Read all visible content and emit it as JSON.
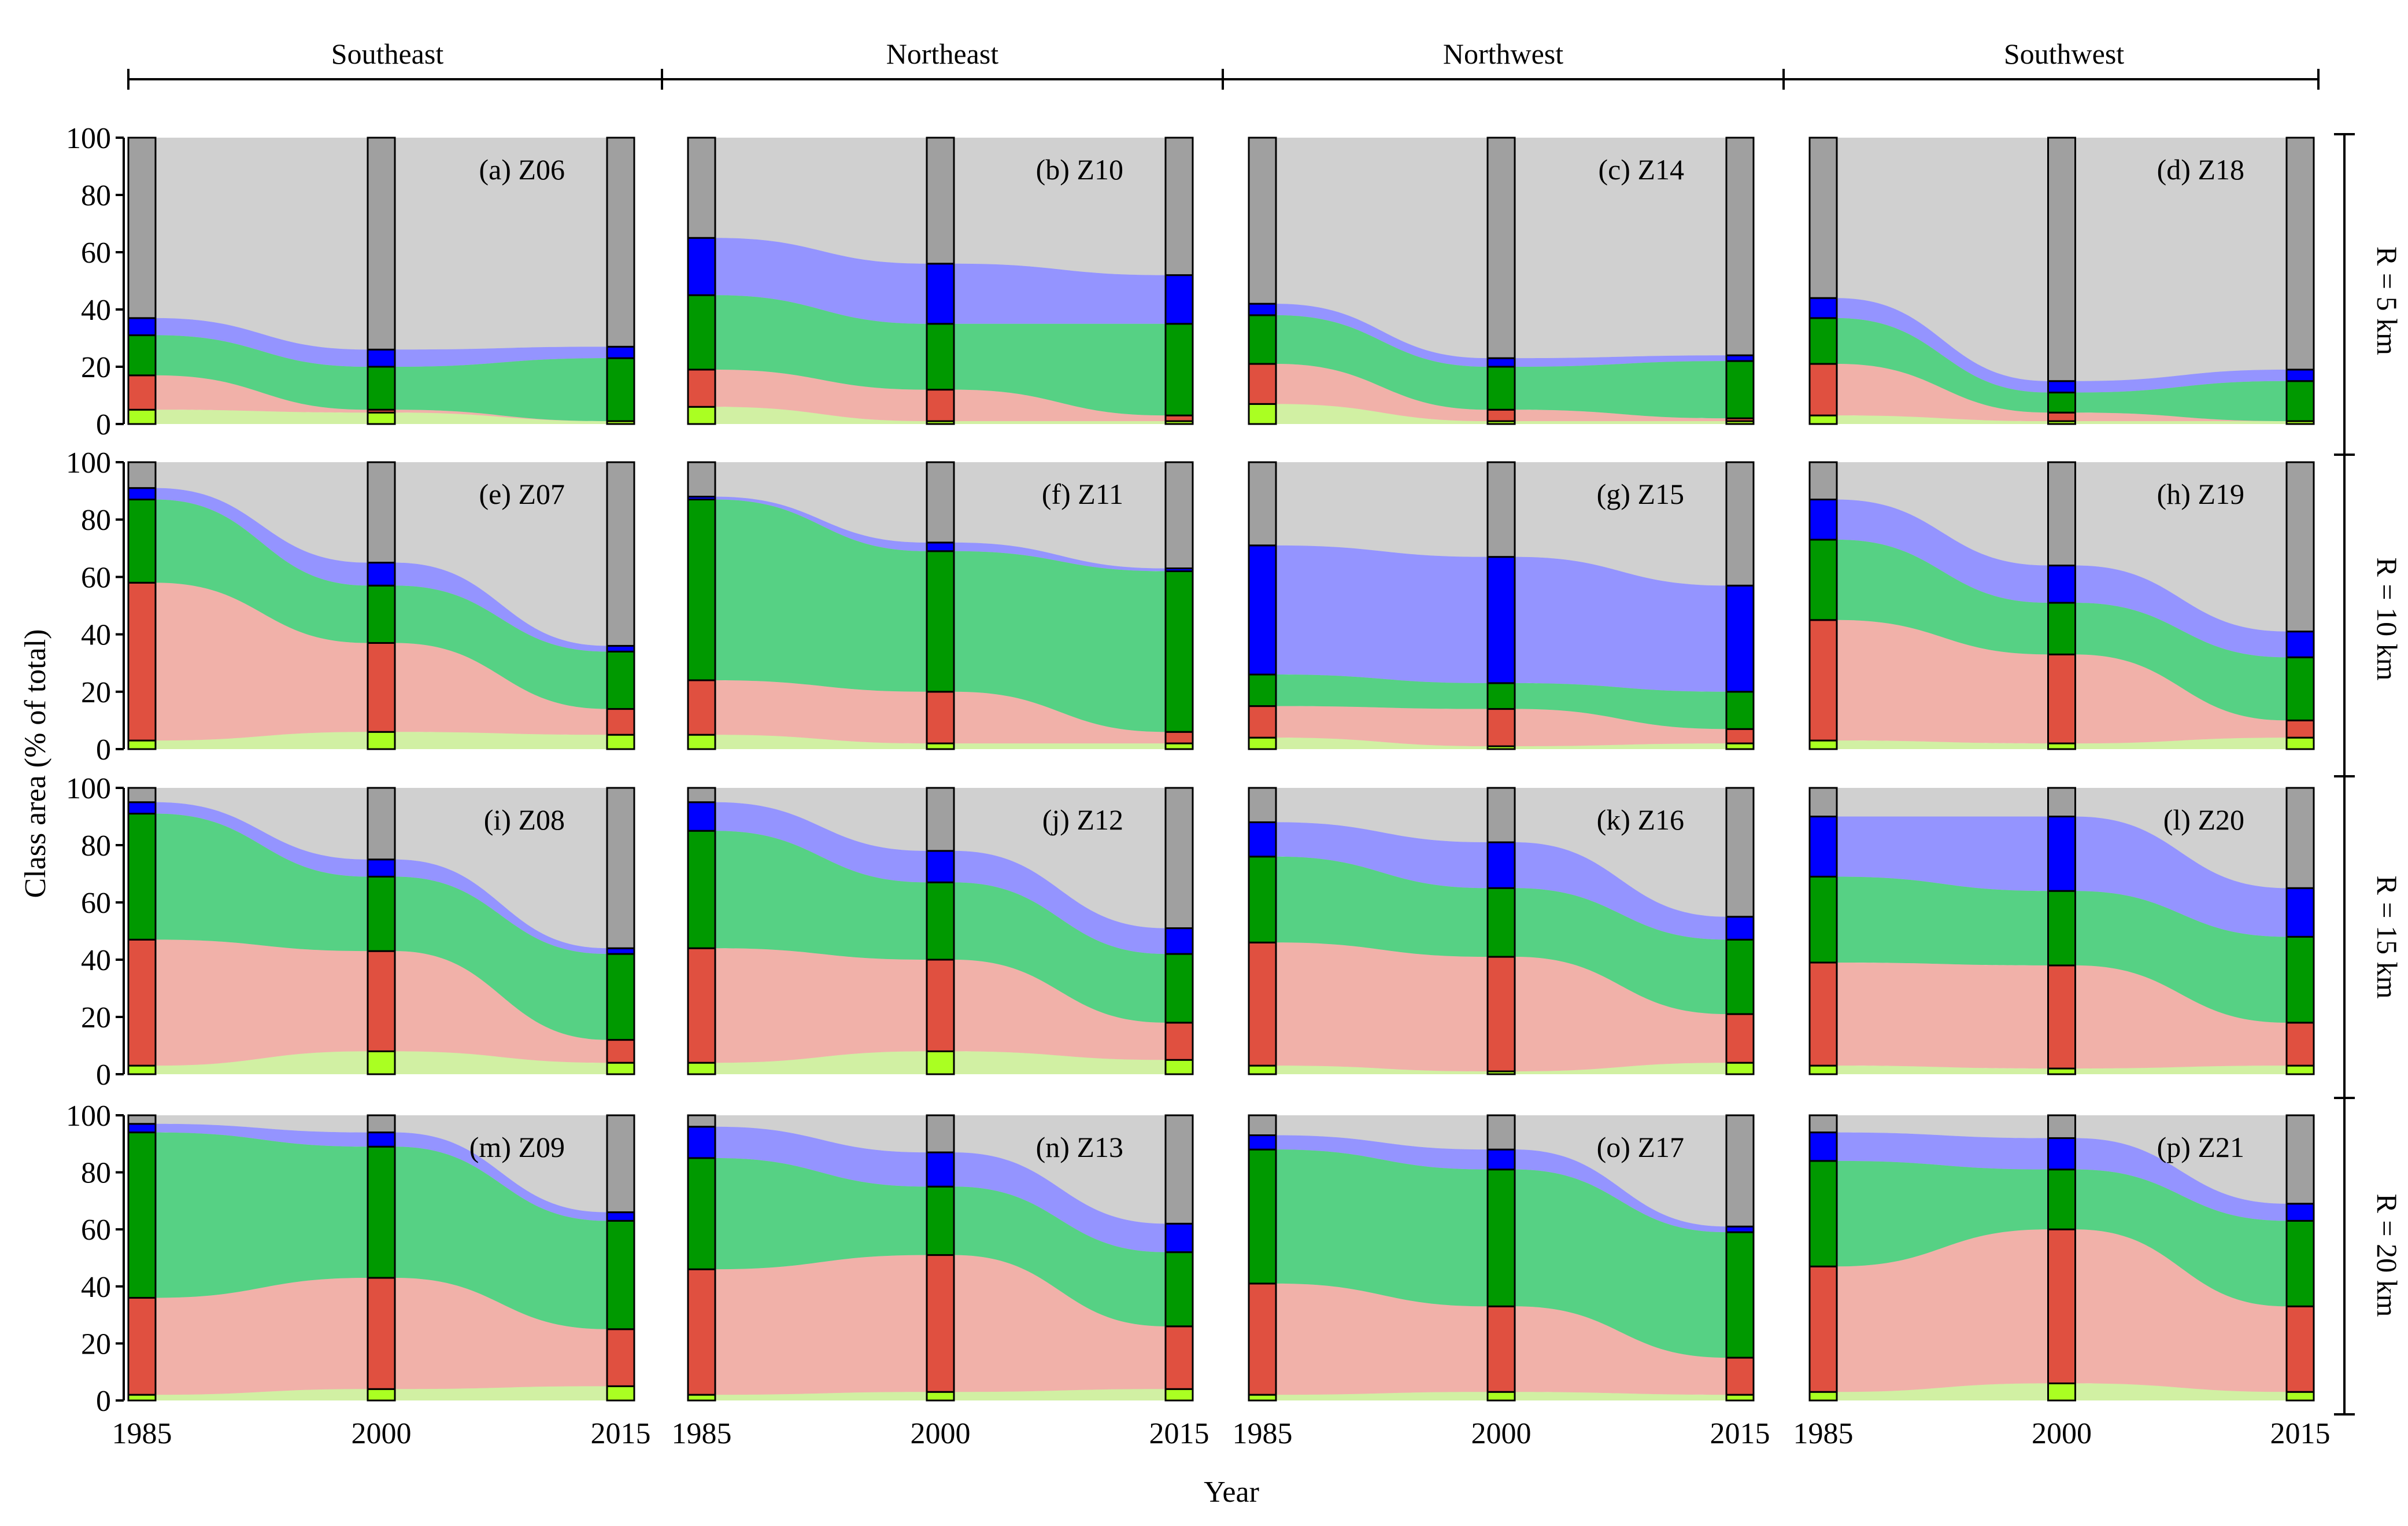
{
  "chart_data": {
    "type": "alluvial",
    "regions": [
      "Southeast",
      "Northeast",
      "Northwest",
      "Southwest"
    ],
    "radii": [
      "R = 5 km",
      "R = 10 km",
      "R = 15 km",
      "R = 20 km"
    ],
    "years": [
      "1985",
      "2000",
      "2015"
    ],
    "ylabel": "Class area (% of total)",
    "xlabel": "Year",
    "ylim": [
      0,
      100
    ],
    "yticks": [
      "0",
      "20",
      "40",
      "60",
      "80",
      "100"
    ],
    "class_colors": [
      "#aaff22",
      "#e05040",
      "#009900",
      "#0000ff",
      "#a0a0a0"
    ],
    "flow_colors": [
      "#ccee99",
      "#f0a8a0",
      "#44cc77",
      "#8888ff",
      "#d0d0d0"
    ],
    "panels": [
      {
        "label": "(a) Z06",
        "row": 0,
        "col": 0,
        "cum": [
          [
            5,
            17,
            31,
            37,
            100
          ],
          [
            4,
            5,
            20,
            26,
            100
          ],
          [
            1,
            1,
            23,
            27,
            100
          ]
        ]
      },
      {
        "label": "(b) Z10",
        "row": 0,
        "col": 1,
        "cum": [
          [
            6,
            19,
            45,
            65,
            100
          ],
          [
            1,
            12,
            35,
            56,
            100
          ],
          [
            1,
            3,
            35,
            52,
            100
          ]
        ]
      },
      {
        "label": "(c) Z14",
        "row": 0,
        "col": 2,
        "cum": [
          [
            7,
            21,
            38,
            42,
            100
          ],
          [
            1,
            5,
            20,
            23,
            100
          ],
          [
            1,
            2,
            22,
            24,
            100
          ]
        ]
      },
      {
        "label": "(d) Z18",
        "row": 0,
        "col": 3,
        "cum": [
          [
            3,
            21,
            37,
            44,
            100
          ],
          [
            1,
            4,
            11,
            15,
            100
          ],
          [
            1,
            1,
            15,
            19,
            100
          ]
        ]
      },
      {
        "label": "(e) Z07",
        "row": 1,
        "col": 0,
        "cum": [
          [
            3,
            58,
            87,
            91,
            100
          ],
          [
            6,
            37,
            57,
            65,
            100
          ],
          [
            5,
            14,
            34,
            36,
            100
          ]
        ]
      },
      {
        "label": "(f) Z11",
        "row": 1,
        "col": 1,
        "cum": [
          [
            5,
            24,
            87,
            88,
            100
          ],
          [
            2,
            20,
            69,
            72,
            100
          ],
          [
            2,
            6,
            62,
            63,
            100
          ]
        ]
      },
      {
        "label": "(g) Z15",
        "row": 1,
        "col": 2,
        "cum": [
          [
            4,
            15,
            26,
            71,
            100
          ],
          [
            1,
            14,
            23,
            67,
            100
          ],
          [
            2,
            7,
            20,
            57,
            100
          ]
        ]
      },
      {
        "label": "(h) Z19",
        "row": 1,
        "col": 3,
        "cum": [
          [
            3,
            45,
            73,
            87,
            100
          ],
          [
            2,
            33,
            51,
            64,
            100
          ],
          [
            4,
            10,
            32,
            41,
            100
          ]
        ]
      },
      {
        "label": "(i) Z08",
        "row": 2,
        "col": 0,
        "cum": [
          [
            3,
            47,
            91,
            95,
            100
          ],
          [
            8,
            43,
            69,
            75,
            100
          ],
          [
            4,
            12,
            42,
            44,
            100
          ]
        ]
      },
      {
        "label": "(j) Z12",
        "row": 2,
        "col": 1,
        "cum": [
          [
            4,
            44,
            85,
            95,
            100
          ],
          [
            8,
            40,
            67,
            78,
            100
          ],
          [
            5,
            18,
            42,
            51,
            100
          ]
        ]
      },
      {
        "label": "(k) Z16",
        "row": 2,
        "col": 2,
        "cum": [
          [
            3,
            46,
            76,
            88,
            100
          ],
          [
            1,
            41,
            65,
            81,
            100
          ],
          [
            4,
            21,
            47,
            55,
            100
          ]
        ]
      },
      {
        "label": "(l) Z20",
        "row": 2,
        "col": 3,
        "cum": [
          [
            3,
            39,
            69,
            90,
            100
          ],
          [
            2,
            38,
            64,
            90,
            100
          ],
          [
            3,
            18,
            48,
            65,
            100
          ]
        ]
      },
      {
        "label": "(m) Z09",
        "row": 3,
        "col": 0,
        "cum": [
          [
            2,
            36,
            94,
            97,
            100
          ],
          [
            4,
            43,
            89,
            94,
            100
          ],
          [
            5,
            25,
            63,
            66,
            100
          ]
        ]
      },
      {
        "label": "(n) Z13",
        "row": 3,
        "col": 1,
        "cum": [
          [
            2,
            46,
            85,
            96,
            100
          ],
          [
            3,
            51,
            75,
            87,
            100
          ],
          [
            4,
            26,
            52,
            62,
            100
          ]
        ]
      },
      {
        "label": "(o) Z17",
        "row": 3,
        "col": 2,
        "cum": [
          [
            2,
            41,
            88,
            93,
            100
          ],
          [
            3,
            33,
            81,
            88,
            100
          ],
          [
            2,
            15,
            59,
            61,
            100
          ]
        ]
      },
      {
        "label": "(p) Z21",
        "row": 3,
        "col": 3,
        "cum": [
          [
            3,
            47,
            84,
            94,
            100
          ],
          [
            6,
            60,
            81,
            92,
            100
          ],
          [
            3,
            33,
            63,
            69,
            100
          ]
        ]
      }
    ]
  }
}
